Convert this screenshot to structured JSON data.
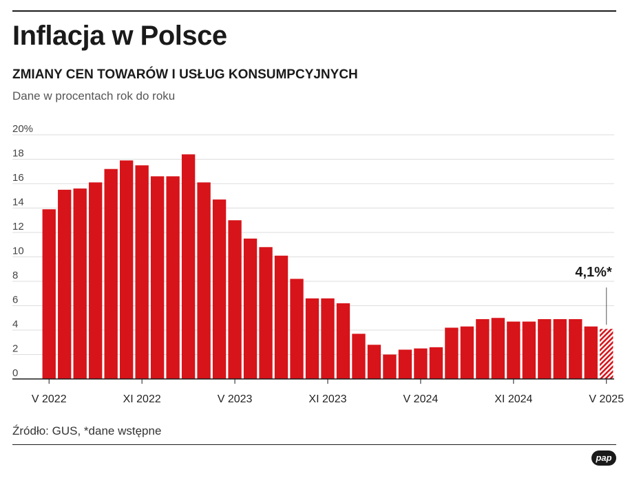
{
  "header": {
    "title": "Inflacja w Polsce",
    "subtitle": "ZMIANY CEN TOWARÓW I USŁUG KONSUMPCYJNYCH",
    "note": "Dane w procentach rok do roku"
  },
  "footer": {
    "source": "Źródło: GUS, *dane wstępne",
    "logo": "pap"
  },
  "colors": {
    "bar": "#d7141a",
    "highlight": "#d7141a",
    "grid": "#dddddd",
    "axis": "#1a1a1a"
  },
  "chart_data": {
    "type": "bar",
    "title": "Inflacja w Polsce",
    "ylabel": "Dane w procentach rok do roku",
    "ylim": [
      0,
      20
    ],
    "yticks": [
      "0",
      "2",
      "4",
      "6",
      "8",
      "10",
      "12",
      "14",
      "16",
      "18",
      "20%"
    ],
    "ytick_values": [
      0,
      2,
      4,
      6,
      8,
      10,
      12,
      14,
      16,
      18,
      20
    ],
    "categories": [
      "V 2022",
      "VI 2022",
      "VII 2022",
      "VIII 2022",
      "IX 2022",
      "X 2022",
      "XI 2022",
      "XII 2022",
      "I 2023",
      "II 2023",
      "III 2023",
      "IV 2023",
      "V 2023",
      "VI 2023",
      "VII 2023",
      "VIII 2023",
      "IX 2023",
      "X 2023",
      "XI 2023",
      "XII 2023",
      "I 2024",
      "II 2024",
      "III 2024",
      "IV 2024",
      "V 2024",
      "VI 2024",
      "VII 2024",
      "VIII 2024",
      "IX 2024",
      "X 2024",
      "XI 2024",
      "XII 2024",
      "I 2025",
      "II 2025",
      "III 2025",
      "IV 2025",
      "V 2025"
    ],
    "values": [
      13.9,
      15.5,
      15.6,
      16.1,
      17.2,
      17.9,
      17.5,
      16.6,
      16.6,
      18.4,
      16.1,
      14.7,
      13.0,
      11.5,
      10.8,
      10.1,
      8.2,
      6.6,
      6.6,
      6.2,
      3.7,
      2.8,
      2.0,
      2.4,
      2.5,
      2.6,
      4.2,
      4.3,
      4.9,
      5.0,
      4.7,
      4.7,
      4.9,
      4.9,
      4.9,
      4.3,
      4.1
    ],
    "xtick_labels": [
      {
        "index": 0,
        "label": "V 2022"
      },
      {
        "index": 6,
        "label": "XI 2022"
      },
      {
        "index": 12,
        "label": "V 2023"
      },
      {
        "index": 18,
        "label": "XI 2023"
      },
      {
        "index": 24,
        "label": "V 2024"
      },
      {
        "index": 30,
        "label": "XI 2024"
      },
      {
        "index": 36,
        "label": "V 2025"
      }
    ],
    "highlight_index": 36,
    "highlight_label": "4,1%*",
    "highlight_style": "hatched"
  }
}
